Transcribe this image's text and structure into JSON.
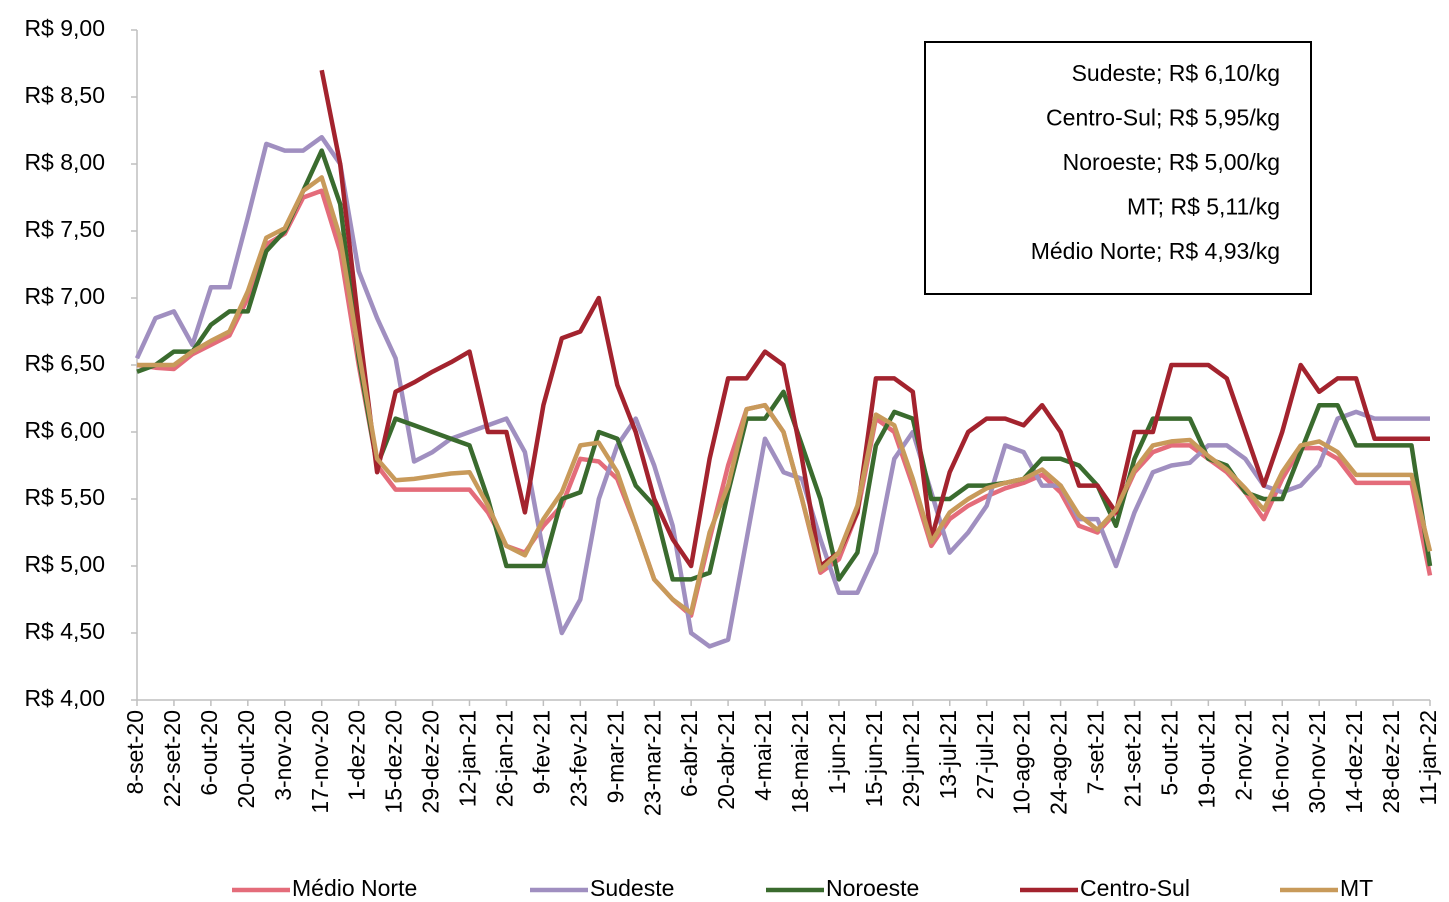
{
  "chart_data": {
    "type": "line",
    "categories": [
      "8-set-20",
      null,
      "22-set-20",
      null,
      "6-out-20",
      null,
      "20-out-20",
      null,
      "3-nov-20",
      null,
      "17-nov-20",
      null,
      "1-dez-20",
      null,
      "15-dez-20",
      null,
      "29-dez-20",
      null,
      "12-jan-21",
      null,
      "26-jan-21",
      null,
      "9-fev-21",
      null,
      "23-fev-21",
      null,
      "9-mar-21",
      null,
      "23-mar-21",
      null,
      "6-abr-21",
      null,
      "20-abr-21",
      null,
      "4-mai-21",
      null,
      "18-mai-21",
      null,
      "1-jun-21",
      null,
      "15-jun-21",
      null,
      "29-jun-21",
      null,
      "13-jul-21",
      null,
      "27-jul-21",
      null,
      "10-ago-21",
      null,
      "24-ago-21",
      null,
      "7-set-21",
      null,
      "21-set-21",
      null,
      "5-out-21",
      null,
      "19-out-21",
      null,
      "2-nov-21",
      null,
      "16-nov-21",
      null,
      "30-nov-21",
      null,
      "14-dez-21",
      null,
      "28-dez-21",
      null,
      "11-jan-22"
    ],
    "series": [
      {
        "name": "Médio Norte",
        "color": "#e46c7a",
        "values": [
          6.5,
          6.48,
          6.47,
          6.58,
          6.65,
          6.72,
          7.0,
          7.4,
          7.48,
          7.75,
          7.8,
          7.35,
          6.5,
          5.75,
          5.57,
          5.57,
          5.57,
          5.57,
          5.57,
          5.4,
          5.15,
          5.1,
          5.3,
          5.45,
          5.8,
          5.78,
          5.65,
          5.3,
          4.9,
          4.75,
          4.63,
          5.2,
          5.75,
          6.17,
          6.2,
          6.0,
          5.5,
          4.95,
          5.05,
          5.4,
          6.1,
          6.0,
          5.6,
          5.15,
          5.35,
          5.45,
          5.52,
          5.58,
          5.62,
          5.68,
          5.55,
          5.3,
          5.25,
          5.4,
          5.7,
          5.85,
          5.9,
          5.9,
          5.8,
          5.7,
          5.55,
          5.35,
          5.65,
          5.88,
          5.88,
          5.8,
          5.62,
          5.62,
          5.62,
          5.62,
          4.93
        ]
      },
      {
        "name": "Sudeste",
        "color": "#a08fc0",
        "values": [
          6.55,
          6.85,
          6.9,
          6.65,
          7.08,
          7.08,
          7.6,
          8.15,
          8.1,
          8.1,
          8.2,
          8.0,
          7.2,
          6.85,
          6.55,
          5.78,
          5.85,
          5.95,
          6.0,
          6.05,
          6.1,
          5.85,
          5.1,
          4.5,
          4.75,
          5.5,
          5.9,
          6.1,
          5.75,
          5.3,
          4.5,
          4.4,
          4.45,
          5.2,
          5.95,
          5.7,
          5.65,
          5.2,
          4.8,
          4.8,
          5.1,
          5.8,
          6.0,
          5.55,
          5.1,
          5.25,
          5.45,
          5.9,
          5.85,
          5.6,
          5.6,
          5.35,
          5.35,
          5.0,
          5.4,
          5.7,
          5.75,
          5.77,
          5.9,
          5.9,
          5.8,
          5.6,
          5.55,
          5.6,
          5.75,
          6.1,
          6.15,
          6.1,
          6.1,
          6.1,
          6.1
        ]
      },
      {
        "name": "Noroeste",
        "color": "#3a6b2e",
        "values": [
          6.45,
          6.5,
          6.6,
          6.6,
          6.8,
          6.9,
          6.9,
          7.35,
          7.5,
          7.8,
          8.1,
          7.7,
          6.55,
          5.75,
          6.1,
          6.05,
          6.0,
          5.95,
          5.9,
          5.5,
          5.0,
          5.0,
          5.0,
          5.5,
          5.55,
          6.0,
          5.95,
          5.6,
          5.45,
          4.9,
          4.9,
          4.95,
          5.55,
          6.1,
          6.1,
          6.3,
          5.9,
          5.5,
          4.9,
          5.1,
          5.9,
          6.15,
          6.1,
          5.5,
          5.5,
          5.6,
          5.6,
          5.62,
          5.65,
          5.8,
          5.8,
          5.75,
          5.6,
          5.3,
          5.8,
          6.1,
          6.1,
          6.1,
          5.8,
          5.75,
          5.55,
          5.5,
          5.5,
          5.85,
          6.2,
          6.2,
          5.9,
          5.9,
          5.9,
          5.9,
          5.0
        ]
      },
      {
        "name": "Centro-Sul",
        "color": "#a3232e",
        "values": [
          null,
          null,
          null,
          null,
          null,
          null,
          null,
          null,
          null,
          null,
          8.7,
          8.0,
          6.8,
          5.7,
          6.3,
          6.37,
          6.45,
          6.52,
          6.6,
          6.0,
          6.0,
          5.4,
          6.2,
          6.7,
          6.75,
          7.0,
          6.35,
          6.0,
          5.5,
          5.2,
          5.0,
          5.8,
          6.4,
          6.4,
          6.6,
          6.5,
          5.8,
          5.0,
          5.1,
          5.4,
          6.4,
          6.4,
          6.3,
          5.2,
          5.7,
          6.0,
          6.1,
          6.1,
          6.05,
          6.2,
          6.0,
          5.6,
          5.6,
          5.4,
          6.0,
          6.0,
          6.5,
          6.5,
          6.5,
          6.4,
          6.0,
          5.6,
          6.0,
          6.5,
          6.3,
          6.4,
          6.4,
          5.95,
          5.95,
          5.95,
          5.95
        ]
      },
      {
        "name": "MT",
        "color": "#c89a5a",
        "values": [
          6.5,
          6.5,
          6.5,
          6.6,
          6.68,
          6.75,
          7.05,
          7.45,
          7.52,
          7.8,
          7.9,
          7.45,
          6.6,
          5.8,
          5.64,
          5.65,
          5.67,
          5.69,
          5.7,
          5.45,
          5.15,
          5.08,
          5.35,
          5.55,
          5.9,
          5.92,
          5.7,
          5.3,
          4.9,
          4.75,
          4.65,
          5.25,
          5.6,
          6.17,
          6.2,
          6.0,
          5.5,
          4.97,
          5.1,
          5.45,
          6.13,
          6.05,
          5.65,
          5.18,
          5.4,
          5.5,
          5.58,
          5.62,
          5.65,
          5.72,
          5.6,
          5.38,
          5.27,
          5.42,
          5.72,
          5.9,
          5.93,
          5.94,
          5.82,
          5.72,
          5.58,
          5.42,
          5.7,
          5.9,
          5.93,
          5.85,
          5.68,
          5.68,
          5.68,
          5.68,
          5.11
        ]
      }
    ],
    "ylim": [
      4,
      9
    ],
    "yticks": [
      {
        "value": 4,
        "label": "R$ 4,00"
      },
      {
        "value": 4.5,
        "label": "R$ 4,50"
      },
      {
        "value": 5,
        "label": "R$ 5,00"
      },
      {
        "value": 5.5,
        "label": "R$ 5,50"
      },
      {
        "value": 6,
        "label": "R$ 6,00"
      },
      {
        "value": 6.5,
        "label": "R$ 6,50"
      },
      {
        "value": 7,
        "label": "R$ 7,00"
      },
      {
        "value": 7.5,
        "label": "R$ 7,50"
      },
      {
        "value": 8,
        "label": "R$ 8,00"
      },
      {
        "value": 8.5,
        "label": "R$ 8,50"
      },
      {
        "value": 9,
        "label": "R$ 9,00"
      }
    ],
    "grid": false,
    "legend": "bottom",
    "annotations": [
      "Sudeste; R$ 6,10/kg",
      "Centro-Sul; R$ 5,95/kg",
      "Noroeste; R$ 5,00/kg",
      "MT; R$ 5,11/kg",
      "Médio Norte; R$ 4,93/kg"
    ]
  }
}
